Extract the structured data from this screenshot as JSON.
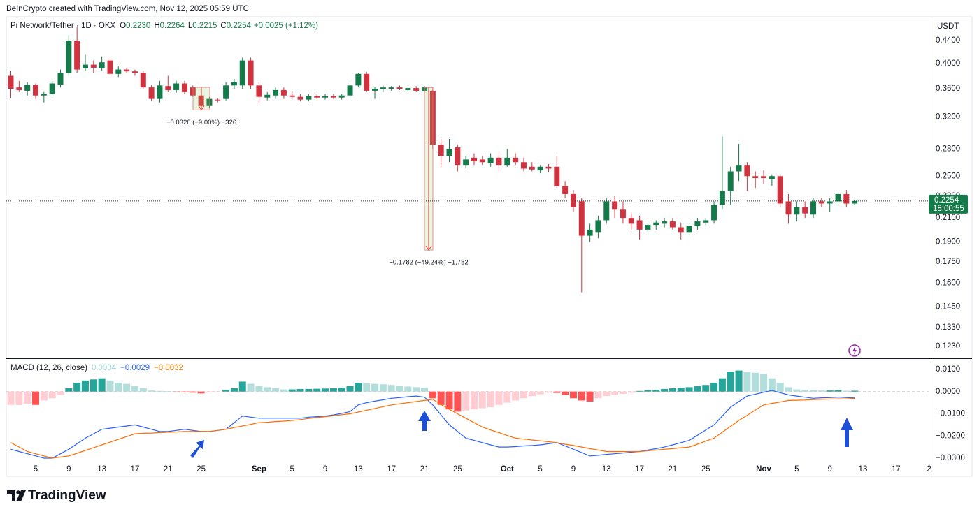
{
  "header": {
    "attribution": "BeInCrypto created with TradingView.com, Nov 12, 2025 05:59 UTC"
  },
  "chart_data": [
    {
      "type": "candlestick",
      "title": "Pi Network/Tether · 1D · OKX",
      "legend": [
        {
          "key": "O",
          "value": "0.2230"
        },
        {
          "key": "H",
          "value": "0.2264"
        },
        {
          "key": "L",
          "value": "0.2215"
        },
        {
          "key": "C",
          "value": "0.2254"
        }
      ],
      "change": "+0.0025 (+1.12%)",
      "currency": "USDT",
      "up_color": "#157a4a",
      "down_color": "#cf3340",
      "log_scale": true,
      "ylim": [
        0.117,
        0.486
      ],
      "yticks": [
        {
          "value": 0.123,
          "label": "0.1230"
        },
        {
          "value": 0.133,
          "label": "0.1330"
        },
        {
          "value": 0.145,
          "label": "0.1450"
        },
        {
          "value": 0.16,
          "label": "0.1600"
        },
        {
          "value": 0.175,
          "label": "0.1750"
        },
        {
          "value": 0.19,
          "label": "0.1900"
        },
        {
          "value": 0.21,
          "label": "0.2100"
        },
        {
          "value": 0.23,
          "label": "0.2300"
        },
        {
          "value": 0.25,
          "label": "0.2500"
        },
        {
          "value": 0.28,
          "label": "0.2800"
        },
        {
          "value": 0.32,
          "label": "0.3200"
        },
        {
          "value": 0.36,
          "label": "0.3600"
        },
        {
          "value": 0.4,
          "label": "0.4000"
        },
        {
          "value": 0.44,
          "label": "0.4400"
        }
      ],
      "last_price": {
        "value": 0.2254,
        "label": "0.2254"
      },
      "countdown": "18:00:55",
      "annotations": [
        {
          "label": "−0.0326 (−9.00%) −326",
          "from": 0.3622,
          "to": 0.3296
        },
        {
          "label": "−0.1782 (−49.24%) −1,782",
          "from": 0.3619,
          "to": 0.1837
        }
      ],
      "categories": [
        null,
        null,
        null,
        "5",
        null,
        null,
        null,
        "9",
        null,
        null,
        null,
        "13",
        null,
        null,
        null,
        "17",
        null,
        null,
        null,
        "21",
        null,
        null,
        null,
        "25",
        null,
        null,
        null,
        null,
        null,
        null,
        "Sep",
        null,
        null,
        null,
        "5",
        null,
        null,
        null,
        "9",
        null,
        null,
        null,
        "13",
        null,
        null,
        null,
        "17",
        null,
        null,
        null,
        "21",
        null,
        null,
        null,
        "25",
        null,
        null,
        null,
        null,
        null,
        "Oct",
        null,
        null,
        null,
        "5",
        null,
        null,
        null,
        "9",
        null,
        null,
        null,
        "13",
        null,
        null,
        null,
        "17",
        null,
        null,
        null,
        "21",
        null,
        null,
        null,
        "25",
        null,
        null,
        null,
        null,
        null,
        null,
        "Nov",
        null,
        null,
        null,
        "5",
        null,
        null,
        null,
        "9",
        null,
        null,
        null,
        "13",
        null,
        null,
        null,
        "17",
        null,
        null,
        null,
        "2"
      ],
      "ohlc": [
        [
          0.38,
          0.388,
          0.346,
          0.36
        ],
        [
          0.362,
          0.372,
          0.355,
          0.358
        ],
        [
          0.357,
          0.37,
          0.35,
          0.366
        ],
        [
          0.366,
          0.368,
          0.345,
          0.35
        ],
        [
          0.35,
          0.355,
          0.34,
          0.352
        ],
        [
          0.352,
          0.372,
          0.35,
          0.368
        ],
        [
          0.366,
          0.39,
          0.362,
          0.385
        ],
        [
          0.385,
          0.45,
          0.38,
          0.44
        ],
        [
          0.44,
          0.465,
          0.385,
          0.39
        ],
        [
          0.392,
          0.415,
          0.388,
          0.398
        ],
        [
          0.398,
          0.405,
          0.385,
          0.393
        ],
        [
          0.392,
          0.412,
          0.388,
          0.402
        ],
        [
          0.405,
          0.41,
          0.38,
          0.383
        ],
        [
          0.383,
          0.395,
          0.378,
          0.39
        ],
        [
          0.39,
          0.392,
          0.385,
          0.387
        ],
        [
          0.387,
          0.39,
          0.38,
          0.385
        ],
        [
          0.385,
          0.388,
          0.36,
          0.362
        ],
        [
          0.362,
          0.366,
          0.342,
          0.345
        ],
        [
          0.345,
          0.372,
          0.34,
          0.365
        ],
        [
          0.364,
          0.38,
          0.355,
          0.358
        ],
        [
          0.358,
          0.372,
          0.354,
          0.368
        ],
        [
          0.368,
          0.372,
          0.352,
          0.355
        ],
        [
          0.362,
          0.365,
          0.348,
          0.35
        ],
        [
          0.35,
          0.356,
          0.33,
          0.335
        ],
        [
          0.335,
          0.348,
          0.332,
          0.345
        ],
        [
          0.344,
          0.346,
          0.34,
          0.343
        ],
        [
          0.345,
          0.37,
          0.343,
          0.365
        ],
        [
          0.365,
          0.375,
          0.36,
          0.37
        ],
        [
          0.365,
          0.41,
          0.36,
          0.405
        ],
        [
          0.405,
          0.41,
          0.36,
          0.365
        ],
        [
          0.365,
          0.37,
          0.34,
          0.348
        ],
        [
          0.347,
          0.355,
          0.343,
          0.351
        ],
        [
          0.35,
          0.362,
          0.345,
          0.358
        ],
        [
          0.358,
          0.362,
          0.345,
          0.35
        ],
        [
          0.35,
          0.356,
          0.345,
          0.348
        ],
        [
          0.348,
          0.352,
          0.342,
          0.344
        ],
        [
          0.344,
          0.352,
          0.342,
          0.349
        ],
        [
          0.349,
          0.352,
          0.345,
          0.347
        ],
        [
          0.347,
          0.352,
          0.344,
          0.349
        ],
        [
          0.349,
          0.352,
          0.345,
          0.347
        ],
        [
          0.347,
          0.352,
          0.344,
          0.35
        ],
        [
          0.35,
          0.368,
          0.348,
          0.365
        ],
        [
          0.365,
          0.385,
          0.362,
          0.383
        ],
        [
          0.383,
          0.386,
          0.355,
          0.357
        ],
        [
          0.357,
          0.362,
          0.345,
          0.36
        ],
        [
          0.359,
          0.365,
          0.355,
          0.362
        ],
        [
          0.36,
          0.364,
          0.357,
          0.362
        ],
        [
          0.362,
          0.365,
          0.358,
          0.36
        ],
        [
          0.358,
          0.363,
          0.355,
          0.361
        ],
        [
          0.361,
          0.364,
          0.355,
          0.357
        ],
        [
          0.356,
          0.364,
          0.354,
          0.362
        ],
        [
          0.357,
          0.362,
          0.28,
          0.285
        ],
        [
          0.285,
          0.292,
          0.26,
          0.272
        ],
        [
          0.272,
          0.292,
          0.265,
          0.28
        ],
        [
          0.282,
          0.285,
          0.255,
          0.262
        ],
        [
          0.262,
          0.272,
          0.258,
          0.268
        ],
        [
          0.27,
          0.275,
          0.262,
          0.266
        ],
        [
          0.268,
          0.272,
          0.262,
          0.265
        ],
        [
          0.264,
          0.275,
          0.26,
          0.27
        ],
        [
          0.27,
          0.275,
          0.255,
          0.262
        ],
        [
          0.262,
          0.28,
          0.26,
          0.27
        ],
        [
          0.27,
          0.275,
          0.262,
          0.265
        ],
        [
          0.265,
          0.27,
          0.255,
          0.258
        ],
        [
          0.26,
          0.265,
          0.255,
          0.257
        ],
        [
          0.256,
          0.262,
          0.253,
          0.26
        ],
        [
          0.26,
          0.263,
          0.254,
          0.258
        ],
        [
          0.26,
          0.272,
          0.238,
          0.24
        ],
        [
          0.24,
          0.245,
          0.228,
          0.232
        ],
        [
          0.232,
          0.236,
          0.215,
          0.22
        ],
        [
          0.225,
          0.228,
          0.154,
          0.195
        ],
        [
          0.195,
          0.205,
          0.19,
          0.2
        ],
        [
          0.198,
          0.212,
          0.193,
          0.208
        ],
        [
          0.208,
          0.228,
          0.205,
          0.225
        ],
        [
          0.225,
          0.23,
          0.21,
          0.218
        ],
        [
          0.218,
          0.225,
          0.205,
          0.21
        ],
        [
          0.21,
          0.214,
          0.2,
          0.205
        ],
        [
          0.208,
          0.212,
          0.192,
          0.2
        ],
        [
          0.2,
          0.206,
          0.198,
          0.204
        ],
        [
          0.204,
          0.208,
          0.2,
          0.206
        ],
        [
          0.205,
          0.21,
          0.202,
          0.207
        ],
        [
          0.207,
          0.21,
          0.2,
          0.202
        ],
        [
          0.202,
          0.206,
          0.192,
          0.198
        ],
        [
          0.198,
          0.206,
          0.195,
          0.203
        ],
        [
          0.203,
          0.21,
          0.2,
          0.207
        ],
        [
          0.206,
          0.21,
          0.204,
          0.208
        ],
        [
          0.208,
          0.225,
          0.205,
          0.222
        ],
        [
          0.222,
          0.295,
          0.218,
          0.235
        ],
        [
          0.235,
          0.26,
          0.222,
          0.255
        ],
        [
          0.255,
          0.286,
          0.245,
          0.262
        ],
        [
          0.262,
          0.265,
          0.235,
          0.25
        ],
        [
          0.25,
          0.255,
          0.238,
          0.248
        ],
        [
          0.25,
          0.256,
          0.242,
          0.248
        ],
        [
          0.247,
          0.252,
          0.24,
          0.25
        ],
        [
          0.25,
          0.252,
          0.22,
          0.223
        ],
        [
          0.225,
          0.232,
          0.205,
          0.213
        ],
        [
          0.213,
          0.225,
          0.207,
          0.22
        ],
        [
          0.22,
          0.225,
          0.21,
          0.214
        ],
        [
          0.213,
          0.228,
          0.21,
          0.225
        ],
        [
          0.225,
          0.228,
          0.22,
          0.223
        ],
        [
          0.223,
          0.228,
          0.215,
          0.225
        ],
        [
          0.225,
          0.235,
          0.222,
          0.232
        ],
        [
          0.232,
          0.236,
          0.22,
          0.223
        ],
        [
          0.223,
          0.2264,
          0.2215,
          0.2254
        ],
        null,
        null,
        null,
        null,
        null,
        null,
        null,
        null,
        null
      ]
    },
    {
      "type": "macd",
      "title": "MACD (12, 26, close)",
      "legend": [
        {
          "value": "0.0004",
          "color": "#9fd5d0"
        },
        {
          "value": "−0.0029",
          "color": "#2962ff"
        },
        {
          "value": "−0.0032",
          "color": "#f57c00"
        }
      ],
      "ylim": [
        -0.0322,
        0.0144
      ],
      "yticks": [
        {
          "value": -0.03,
          "label": "−0.0300"
        },
        {
          "value": -0.02,
          "label": "−0.0200"
        },
        {
          "value": -0.01,
          "label": "−0.0100"
        },
        {
          "value": 0,
          "label": "0.0000"
        },
        {
          "value": 0.01,
          "label": "0.0100"
        }
      ],
      "histogram_colors": [
        "#26a69a",
        "#b2dfdb",
        "#ff5252",
        "#ffcdd2"
      ],
      "macd_color": "#2962ff",
      "signal_color": "#ff6d00",
      "histogram": [
        -0.006,
        -0.006,
        -0.0055,
        -0.006,
        -0.004,
        -0.003,
        -0.0015,
        0.0015,
        0.004,
        0.005,
        0.0055,
        0.006,
        0.005,
        0.004,
        0.0035,
        0.0025,
        0.0015,
        0.0005,
        0.0003,
        0.0002,
        -0.0001,
        -0.0003,
        -0.0005,
        -0.0008,
        -0.0004,
        -0.0002,
        0.0008,
        0.0015,
        0.0045,
        0.0035,
        0.0025,
        0.002,
        0.0015,
        0.001,
        0.001,
        0.0012,
        0.0012,
        0.0013,
        0.0014,
        0.0015,
        0.0018,
        0.0025,
        0.004,
        0.0037,
        0.0035,
        0.0033,
        0.003,
        0.0027,
        0.0023,
        0.002,
        0.0017,
        -0.003,
        -0.006,
        -0.008,
        -0.009,
        -0.0085,
        -0.008,
        -0.0075,
        -0.007,
        -0.006,
        -0.005,
        -0.004,
        -0.003,
        -0.002,
        -0.0012,
        -0.0005,
        -0.0006,
        -0.0015,
        -0.003,
        -0.004,
        -0.0045,
        -0.003,
        -0.002,
        -0.0015,
        -0.001,
        -0.0005,
        0.0003,
        0.0006,
        0.0008,
        0.0012,
        0.0015,
        0.0017,
        0.002,
        0.0025,
        0.003,
        0.004,
        0.006,
        0.009,
        0.0095,
        0.009,
        0.0085,
        0.008,
        0.006,
        0.004,
        0.002,
        0.001,
        0.0007,
        0.0006,
        0.0005,
        0.0005,
        0.0006,
        0.0004,
        0.0004
      ],
      "macd": [
        -0.026,
        -0.027,
        -0.028,
        -0.029,
        -0.03,
        -0.03,
        -0.028,
        -0.026,
        -0.0235,
        -0.021,
        -0.019,
        -0.017,
        -0.0165,
        -0.016,
        -0.0155,
        -0.015,
        -0.016,
        -0.017,
        -0.018,
        -0.018,
        -0.0175,
        -0.017,
        -0.0175,
        -0.018,
        -0.018,
        -0.0175,
        -0.017,
        -0.014,
        -0.011,
        -0.0115,
        -0.012,
        -0.012,
        -0.012,
        -0.012,
        -0.012,
        -0.012,
        -0.0115,
        -0.0113,
        -0.011,
        -0.0105,
        -0.0098,
        -0.009,
        -0.006,
        -0.005,
        -0.0043,
        -0.0037,
        -0.003,
        -0.0027,
        -0.0023,
        -0.002,
        -0.0025,
        -0.006,
        -0.0105,
        -0.015,
        -0.018,
        -0.021,
        -0.022,
        -0.023,
        -0.024,
        -0.025,
        -0.025,
        -0.0248,
        -0.0245,
        -0.0243,
        -0.024,
        -0.0235,
        -0.023,
        -0.0245,
        -0.026,
        -0.0275,
        -0.029,
        -0.0287,
        -0.0283,
        -0.028,
        -0.0277,
        -0.0273,
        -0.027,
        -0.0263,
        -0.0257,
        -0.025,
        -0.024,
        -0.023,
        -0.022,
        -0.0197,
        -0.0173,
        -0.015,
        -0.011,
        -0.007,
        -0.0045,
        -0.002,
        -0.0012,
        -0.0003,
        0.0005,
        -0.0005,
        -0.0015,
        -0.002,
        -0.0025,
        -0.003,
        -0.0028,
        -0.0027,
        -0.0025,
        -0.0027,
        -0.0029
      ],
      "signal": [
        -0.023,
        -0.025,
        -0.027,
        -0.028,
        -0.029,
        -0.03,
        -0.0295,
        -0.029,
        -0.0278,
        -0.0265,
        -0.0253,
        -0.024,
        -0.0228,
        -0.0215,
        -0.0203,
        -0.019,
        -0.0188,
        -0.0187,
        -0.0185,
        -0.0183,
        -0.0182,
        -0.018,
        -0.018,
        -0.018,
        -0.018,
        -0.0175,
        -0.017,
        -0.0162,
        -0.0155,
        -0.0148,
        -0.014,
        -0.0138,
        -0.0135,
        -0.0133,
        -0.013,
        -0.0126,
        -0.0121,
        -0.0117,
        -0.0113,
        -0.0109,
        -0.0104,
        -0.01,
        -0.0092,
        -0.0084,
        -0.0076,
        -0.0068,
        -0.006,
        -0.0055,
        -0.005,
        -0.0045,
        -0.004,
        -0.0035,
        -0.0058,
        -0.008,
        -0.01,
        -0.012,
        -0.014,
        -0.016,
        -0.0173,
        -0.0185,
        -0.0198,
        -0.021,
        -0.0214,
        -0.0218,
        -0.0222,
        -0.0226,
        -0.023,
        -0.0237,
        -0.0243,
        -0.025,
        -0.0257,
        -0.0263,
        -0.027,
        -0.027,
        -0.027,
        -0.027,
        -0.027,
        -0.0267,
        -0.0263,
        -0.026,
        -0.0257,
        -0.0253,
        -0.025,
        -0.0237,
        -0.0223,
        -0.021,
        -0.0183,
        -0.0157,
        -0.013,
        -0.0107,
        -0.0083,
        -0.006,
        -0.0053,
        -0.0047,
        -0.004,
        -0.0039,
        -0.0038,
        -0.0036,
        -0.0035,
        -0.0034,
        -0.0033,
        -0.0033,
        -0.0032
      ]
    }
  ],
  "footer": {
    "logo": "TradingView"
  }
}
